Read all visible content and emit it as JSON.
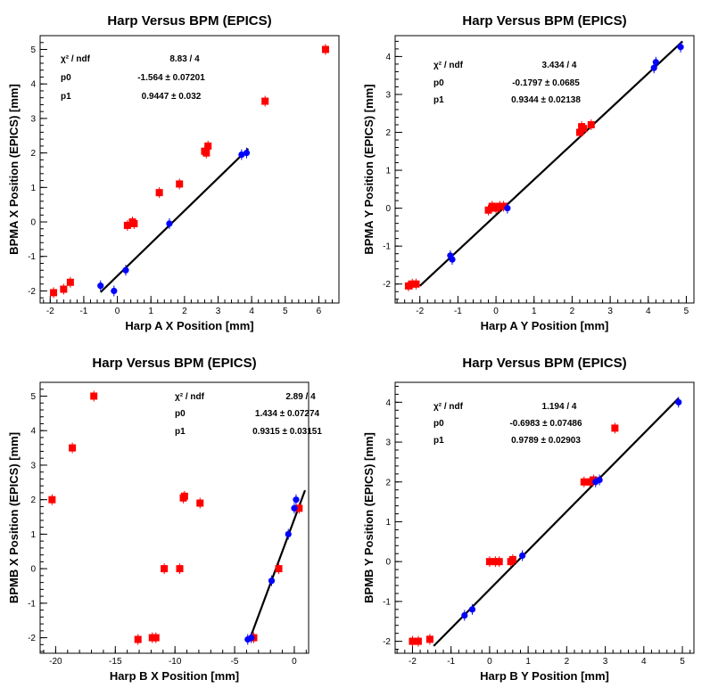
{
  "chart_data": [
    {
      "type": "scatter",
      "title": "Harp Versus BPM (EPICS)",
      "xlabel": "Harp A X Position [mm]",
      "ylabel": "BPMA X Position (EPICS) [mm]",
      "xlim": [
        -2.3,
        6.6
      ],
      "ylim": [
        -2.35,
        5.4
      ],
      "xticks": [
        -2,
        -1,
        0,
        1,
        2,
        3,
        4,
        5,
        6
      ],
      "yticks": [
        -2,
        -1,
        0,
        1,
        2,
        3,
        4,
        5
      ],
      "stats": {
        "chi2_label": "χ² / ndf",
        "chi2_value": "8.83 / 4",
        "p0_label": "p0",
        "p0_value": "-1.564 ± 0.07201",
        "p1_label": "p1",
        "p1_value": "0.9447 ± 0.032"
      },
      "fit": {
        "p0": -1.564,
        "p1": 0.9447,
        "x_range": [
          -0.5,
          3.9
        ]
      },
      "series": [
        {
          "color": "#ff0000",
          "marker": "square",
          "points": [
            [
              -1.9,
              -2.05
            ],
            [
              -1.6,
              -1.95
            ],
            [
              -1.4,
              -1.75
            ],
            [
              0.3,
              -0.1
            ],
            [
              0.45,
              0.0
            ],
            [
              0.5,
              -0.05
            ],
            [
              1.25,
              0.85
            ],
            [
              1.85,
              1.1
            ],
            [
              2.6,
              2.05
            ],
            [
              2.7,
              2.2
            ],
            [
              2.65,
              2.0
            ],
            [
              4.4,
              3.5
            ],
            [
              6.2,
              5.0
            ]
          ]
        },
        {
          "color": "#0000ff",
          "marker": "circle",
          "points": [
            [
              -0.5,
              -1.85
            ],
            [
              -0.1,
              -2.0
            ],
            [
              0.25,
              -1.4
            ],
            [
              1.55,
              -0.05
            ],
            [
              3.7,
              1.95
            ],
            [
              3.85,
              2.0
            ]
          ]
        }
      ]
    },
    {
      "type": "scatter",
      "title": "Harp Versus BPM (EPICS)",
      "xlabel": "Harp A Y Position [mm]",
      "ylabel": "BPMA Y Position (EPICS) [mm]",
      "xlim": [
        -2.65,
        5.2
      ],
      "ylim": [
        -2.5,
        4.55
      ],
      "xticks": [
        -2,
        -1,
        0,
        1,
        2,
        3,
        4,
        5
      ],
      "yticks": [
        -2,
        -1,
        0,
        1,
        2,
        3,
        4
      ],
      "stats": {
        "chi2_label": "χ² / ndf",
        "chi2_value": "3.434 / 4",
        "p0_label": "p0",
        "p0_value": "-0.1797 ± 0.0685",
        "p1_label": "p1",
        "p1_value": "0.9344 ± 0.02138"
      },
      "fit": {
        "p0": -0.1797,
        "p1": 0.9344,
        "x_range": [
          -2.0,
          4.9
        ]
      },
      "series": [
        {
          "color": "#ff0000",
          "marker": "square",
          "points": [
            [
              -2.3,
              -2.05
            ],
            [
              -2.2,
              -2.0
            ],
            [
              -2.1,
              -2.0
            ],
            [
              -0.2,
              -0.05
            ],
            [
              -0.1,
              0.05
            ],
            [
              0.0,
              0.0
            ],
            [
              0.1,
              0.05
            ],
            [
              0.2,
              0.05
            ],
            [
              2.2,
              2.0
            ],
            [
              2.25,
              2.15
            ],
            [
              2.3,
              2.1
            ],
            [
              2.5,
              2.2
            ]
          ]
        },
        {
          "color": "#0000ff",
          "marker": "circle",
          "points": [
            [
              -1.2,
              -1.25
            ],
            [
              -1.15,
              -1.35
            ],
            [
              0.3,
              0.0
            ],
            [
              4.15,
              3.7
            ],
            [
              4.2,
              3.85
            ],
            [
              4.85,
              4.25
            ]
          ]
        }
      ]
    },
    {
      "type": "scatter",
      "title": "Harp Versus BPM (EPICS)",
      "xlabel": "Harp B X Position [mm]",
      "ylabel": "BPMB X Position (EPICS) [mm]",
      "xlim": [
        -21.3,
        1.2
      ],
      "ylim": [
        -2.45,
        5.4
      ],
      "xticks": [
        -20,
        -15,
        -10,
        -5,
        0
      ],
      "yticks": [
        -2,
        -1,
        0,
        1,
        2,
        3,
        4,
        5
      ],
      "stats": {
        "chi2_label": "χ² / ndf",
        "chi2_value": "2.89 / 4",
        "p0_label": "p0",
        "p0_value": "1.434 ± 0.07274",
        "p1_label": "p1",
        "p1_value": "0.9315 ± 0.03151"
      },
      "fit": {
        "p0": 1.434,
        "p1": 0.9315,
        "x_range": [
          -3.8,
          0.9
        ]
      },
      "series": [
        {
          "color": "#ff0000",
          "marker": "square",
          "points": [
            [
              -20.3,
              2.0
            ],
            [
              -18.6,
              3.5
            ],
            [
              -16.8,
              5.0
            ],
            [
              -13.1,
              -2.05
            ],
            [
              -11.9,
              -2.0
            ],
            [
              -11.6,
              -2.0
            ],
            [
              -10.9,
              0.0
            ],
            [
              -9.6,
              0.0
            ],
            [
              -9.3,
              2.05
            ],
            [
              -9.2,
              2.1
            ],
            [
              -7.9,
              1.9
            ],
            [
              -3.4,
              -2.0
            ],
            [
              -1.3,
              0.0
            ],
            [
              0.4,
              1.75
            ]
          ]
        },
        {
          "color": "#0000ff",
          "marker": "circle",
          "points": [
            [
              -3.9,
              -2.05
            ],
            [
              -3.6,
              -2.0
            ],
            [
              -1.9,
              -0.35
            ],
            [
              -0.5,
              1.0
            ],
            [
              0.0,
              1.75
            ],
            [
              0.15,
              2.0
            ]
          ]
        }
      ]
    },
    {
      "type": "scatter",
      "title": "Harp Versus BPM (EPICS)",
      "xlabel": "Harp B Y Position [mm]",
      "ylabel": "BPMB Y Position (EPICS) [mm]",
      "xlim": [
        -2.45,
        5.3
      ],
      "ylim": [
        -2.3,
        4.5
      ],
      "xticks": [
        -2,
        -1,
        0,
        1,
        2,
        3,
        4,
        5
      ],
      "yticks": [
        -2,
        -1,
        0,
        1,
        2,
        3,
        4
      ],
      "stats": {
        "chi2_label": "χ² / ndf",
        "chi2_value": "1.194 / 4",
        "p0_label": "p0",
        "p0_value": "-0.6983 ± 0.07486",
        "p1_label": "p1",
        "p1_value": "0.9789 ± 0.02903"
      },
      "fit": {
        "p0": -0.6983,
        "p1": 0.9789,
        "x_range": [
          -1.45,
          4.9
        ]
      },
      "series": [
        {
          "color": "#ff0000",
          "marker": "square",
          "points": [
            [
              -2.0,
              -2.0
            ],
            [
              -1.85,
              -2.0
            ],
            [
              -1.55,
              -1.95
            ],
            [
              0.0,
              0.0
            ],
            [
              0.15,
              0.0
            ],
            [
              0.25,
              0.0
            ],
            [
              0.55,
              0.0
            ],
            [
              0.6,
              0.05
            ],
            [
              2.45,
              2.0
            ],
            [
              2.6,
              2.0
            ],
            [
              2.7,
              2.05
            ],
            [
              3.25,
              3.35
            ]
          ]
        },
        {
          "color": "#0000ff",
          "marker": "circle",
          "points": [
            [
              -0.65,
              -1.35
            ],
            [
              -0.45,
              -1.2
            ],
            [
              0.85,
              0.15
            ],
            [
              2.75,
              2.0
            ],
            [
              2.85,
              2.05
            ],
            [
              4.9,
              4.0
            ]
          ]
        }
      ]
    }
  ]
}
